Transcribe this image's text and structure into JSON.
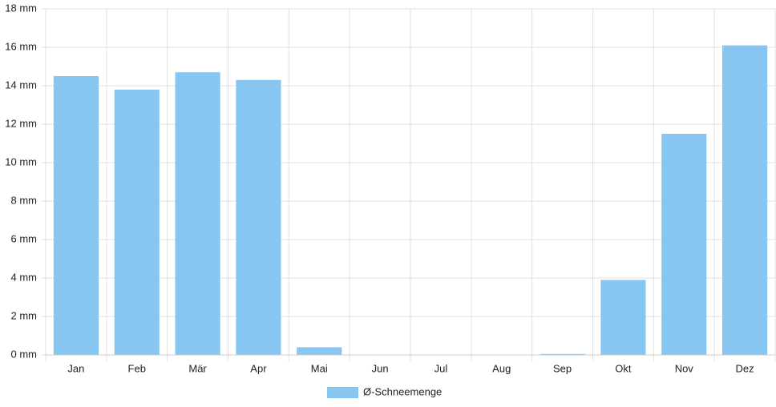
{
  "chart_data": {
    "type": "bar",
    "categories": [
      "Jan",
      "Feb",
      "Mär",
      "Apr",
      "Mai",
      "Jun",
      "Jul",
      "Aug",
      "Sep",
      "Okt",
      "Nov",
      "Dez"
    ],
    "series": [
      {
        "name": "Ø-Schneemenge",
        "color": "#88c6f2",
        "values": [
          14.5,
          13.8,
          14.7,
          14.3,
          0.4,
          0,
          0,
          0,
          0.05,
          3.9,
          11.5,
          16.1
        ]
      }
    ],
    "ylim": [
      0,
      18
    ],
    "yticks": [
      {
        "value": 0,
        "label": "0 mm"
      },
      {
        "value": 2,
        "label": "2 mm"
      },
      {
        "value": 4,
        "label": "4 mm"
      },
      {
        "value": 6,
        "label": "6 mm"
      },
      {
        "value": 8,
        "label": "8 mm"
      },
      {
        "value": 10,
        "label": "10 mm"
      },
      {
        "value": 12,
        "label": "12 mm"
      },
      {
        "value": 14,
        "label": "14 mm"
      },
      {
        "value": 16,
        "label": "16 mm"
      },
      {
        "value": 18,
        "label": "18 mm"
      }
    ],
    "grid": true,
    "legend": "bottom"
  }
}
